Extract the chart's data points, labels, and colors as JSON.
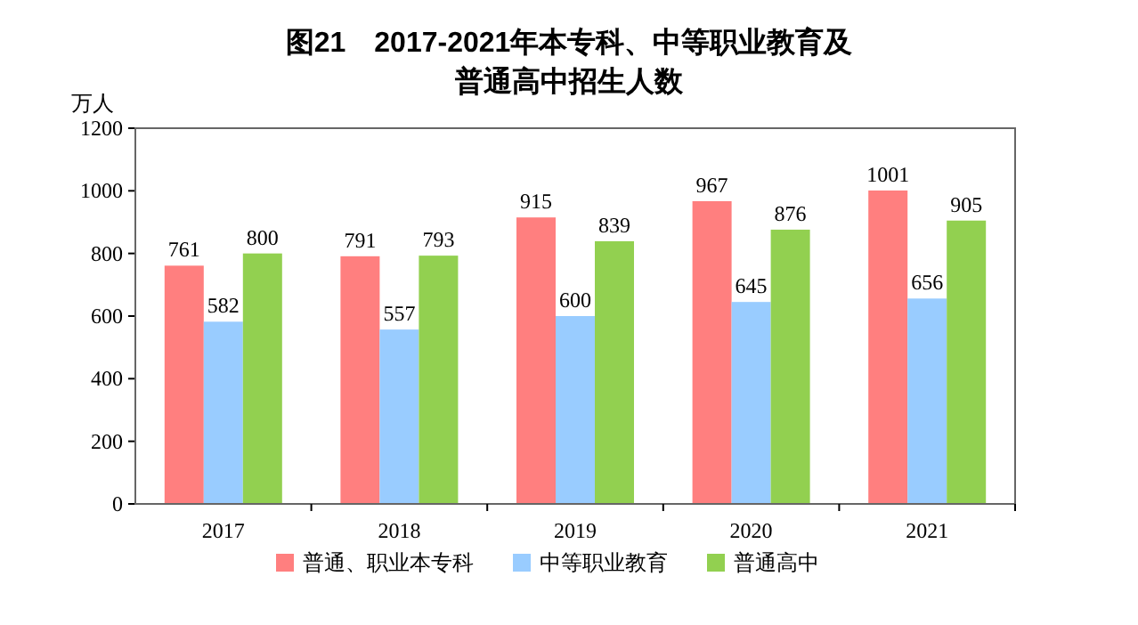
{
  "chart_data": {
    "type": "bar",
    "title": "图21　2017-2021年本专科、中等职业教育及普通高中招生人数",
    "ylabel": "万人",
    "categories": [
      "2017",
      "2018",
      "2019",
      "2020",
      "2021"
    ],
    "series": [
      {
        "name": "普通、职业本专科",
        "color": "#ff7f7f",
        "values": [
          761,
          791,
          915,
          967,
          1001
        ]
      },
      {
        "name": "中等职业教育",
        "color": "#99ccff",
        "values": [
          582,
          557,
          600,
          645,
          656
        ]
      },
      {
        "name": "普通高中",
        "color": "#92d050",
        "values": [
          800,
          793,
          839,
          876,
          905
        ]
      }
    ],
    "ylim": [
      0,
      1200
    ],
    "yticks": [
      0,
      200,
      400,
      600,
      800,
      1000,
      1200
    ],
    "data_labels": true,
    "legend": "bottom",
    "grid": false
  }
}
